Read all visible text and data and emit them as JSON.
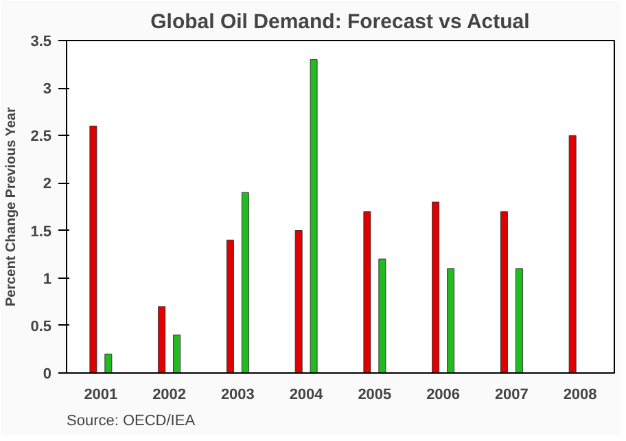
{
  "chart_data": {
    "type": "bar",
    "title": "Global Oil Demand: Forecast vs Actual",
    "ylabel": "Percent Change Previous Year",
    "categories": [
      "2001",
      "2002",
      "2003",
      "2004",
      "2005",
      "2006",
      "2007",
      "2008"
    ],
    "series": [
      {
        "color": "#e00000",
        "values": [
          2.6,
          0.7,
          1.4,
          1.5,
          1.7,
          1.8,
          1.7,
          2.5
        ]
      },
      {
        "color": "#22bb22",
        "values": [
          0.2,
          0.4,
          1.9,
          3.3,
          1.2,
          1.1,
          1.1,
          null
        ]
      }
    ],
    "ylim": [
      0,
      3.5
    ],
    "yticks": [
      0,
      0.5,
      1,
      1.5,
      2,
      2.5,
      3,
      3.5
    ],
    "annotations": [
      "Source: OECD/IEA"
    ]
  }
}
